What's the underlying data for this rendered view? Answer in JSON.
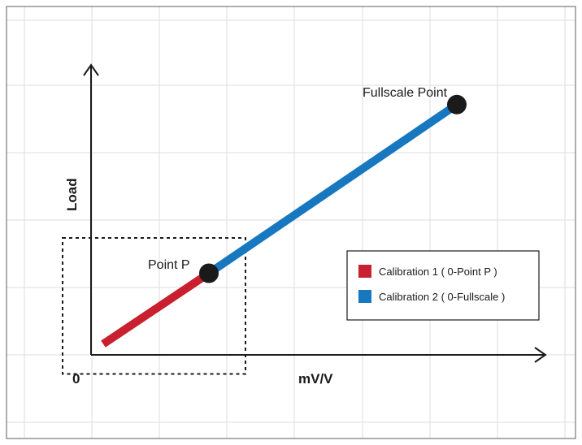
{
  "chart_data": {
    "type": "line",
    "xlabel": "mV/V",
    "ylabel": "Load",
    "origin_label": "0",
    "xlim": [
      0,
      10
    ],
    "ylim": [
      0,
      10
    ],
    "grid": true,
    "legend_position": "right",
    "series": [
      {
        "name": "Calibration 1 ( 0-Point P )",
        "color": "#c8202f",
        "x": [
          0.3,
          2.9
        ],
        "y": [
          0.4,
          3.0
        ]
      },
      {
        "name": "Calibration 2 ( 0-Fullscale )",
        "color": "#1777bf",
        "x": [
          2.9,
          9.0
        ],
        "y": [
          3.0,
          9.2
        ]
      }
    ],
    "annotations": [
      {
        "label": "Point P",
        "x": 2.9,
        "y": 3.0
      },
      {
        "label": "Fullscale Point",
        "x": 9.0,
        "y": 9.2
      }
    ],
    "highlight_box": {
      "x": [
        -0.7,
        3.8
      ],
      "y": [
        -0.7,
        4.3
      ]
    }
  }
}
